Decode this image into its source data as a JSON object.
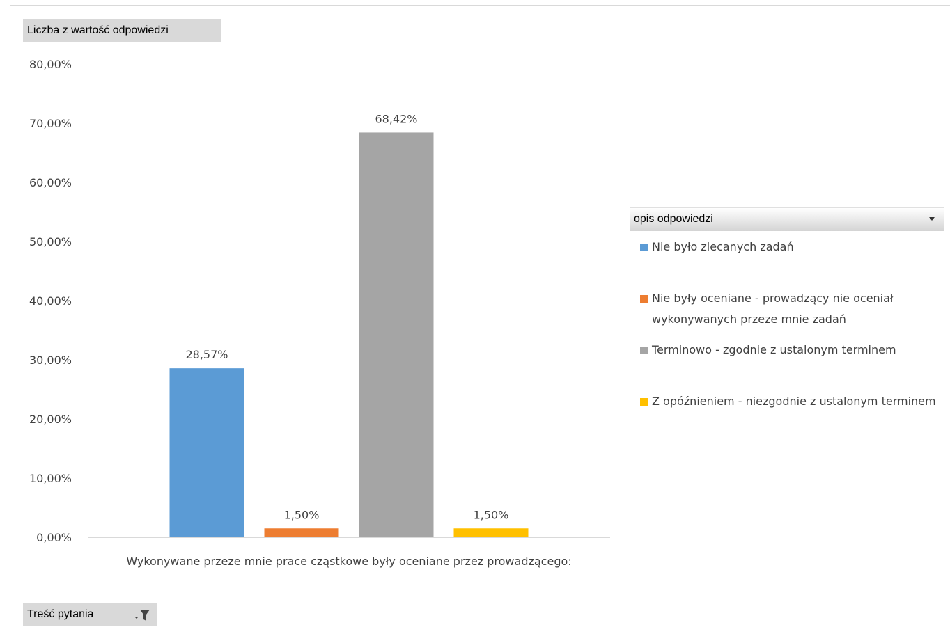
{
  "fields": {
    "value_field": "Liczba z wartość odpowiedzi",
    "axis_field": "Treść pytania",
    "axis_filter_icon": "filter-icon"
  },
  "legend": {
    "title": "opis odpowiedzi",
    "dropdown_icon": "dropdown-arrow-icon"
  },
  "chart_data": {
    "type": "bar",
    "categories": [
      "Wykonywane przeze mnie prace cząstkowe były oceniane przez prowadzącego:"
    ],
    "series": [
      {
        "name": "Nie było zlecanych zadań",
        "values": [
          28.57
        ],
        "label": "28,57%",
        "color": "#5b9bd5"
      },
      {
        "name": "Nie były oceniane - prowadzący nie oceniał wykonywanych przeze mnie zadań",
        "values": [
          1.5
        ],
        "label": "1,50%",
        "color": "#ed7d31"
      },
      {
        "name": "Terminowo - zgodnie z ustalonym terminem",
        "values": [
          68.42
        ],
        "label": "68,42%",
        "color": "#a5a5a5"
      },
      {
        "name": "Z opóźnieniem - niezgodnie z ustalonym terminem",
        "values": [
          1.5
        ],
        "label": "1,50%",
        "color": "#ffc000"
      }
    ],
    "y_ticks": [
      "0,00%",
      "10,00%",
      "20,00%",
      "30,00%",
      "40,00%",
      "50,00%",
      "60,00%",
      "70,00%",
      "80,00%"
    ],
    "ylim": [
      0,
      80
    ],
    "grid": false,
    "legend_position": "right"
  }
}
